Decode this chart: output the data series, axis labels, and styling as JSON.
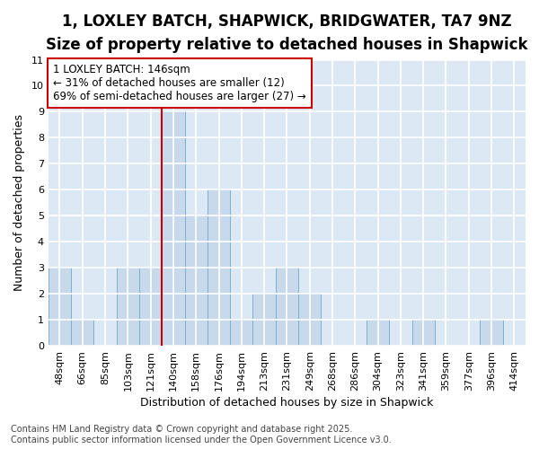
{
  "title_line1": "1, LOXLEY BATCH, SHAPWICK, BRIDGWATER, TA7 9NZ",
  "title_line2": "Size of property relative to detached houses in Shapwick",
  "xlabel": "Distribution of detached houses by size in Shapwick",
  "ylabel": "Number of detached properties",
  "categories": [
    "48sqm",
    "66sqm",
    "85sqm",
    "103sqm",
    "121sqm",
    "140sqm",
    "158sqm",
    "176sqm",
    "194sqm",
    "213sqm",
    "231sqm",
    "249sqm",
    "268sqm",
    "286sqm",
    "304sqm",
    "323sqm",
    "341sqm",
    "359sqm",
    "377sqm",
    "396sqm",
    "414sqm"
  ],
  "values": [
    3,
    1,
    0,
    3,
    3,
    9,
    5,
    6,
    1,
    2,
    3,
    2,
    0,
    0,
    1,
    0,
    1,
    0,
    0,
    1,
    0
  ],
  "bar_color": "#c8d9ec",
  "bar_edge_color": "#7aafd4",
  "highlight_index": 5,
  "highlight_line_color": "#cc0000",
  "annotation_text": "1 LOXLEY BATCH: 146sqm\n← 31% of detached houses are smaller (12)\n69% of semi-detached houses are larger (27) →",
  "annotation_box_color": "#ffffff",
  "annotation_box_edge_color": "#cc0000",
  "ylim": [
    0,
    11
  ],
  "yticks": [
    0,
    1,
    2,
    3,
    4,
    5,
    6,
    7,
    8,
    9,
    10,
    11
  ],
  "footer_text": "Contains HM Land Registry data © Crown copyright and database right 2025.\nContains public sector information licensed under the Open Government Licence v3.0.",
  "background_color": "#ffffff",
  "plot_background_color": "#dde8f5",
  "grid_color": "#ffffff",
  "title_fontsize": 12,
  "subtitle_fontsize": 10,
  "axis_label_fontsize": 9,
  "tick_fontsize": 8,
  "footer_fontsize": 7,
  "annotation_fontsize": 8.5
}
